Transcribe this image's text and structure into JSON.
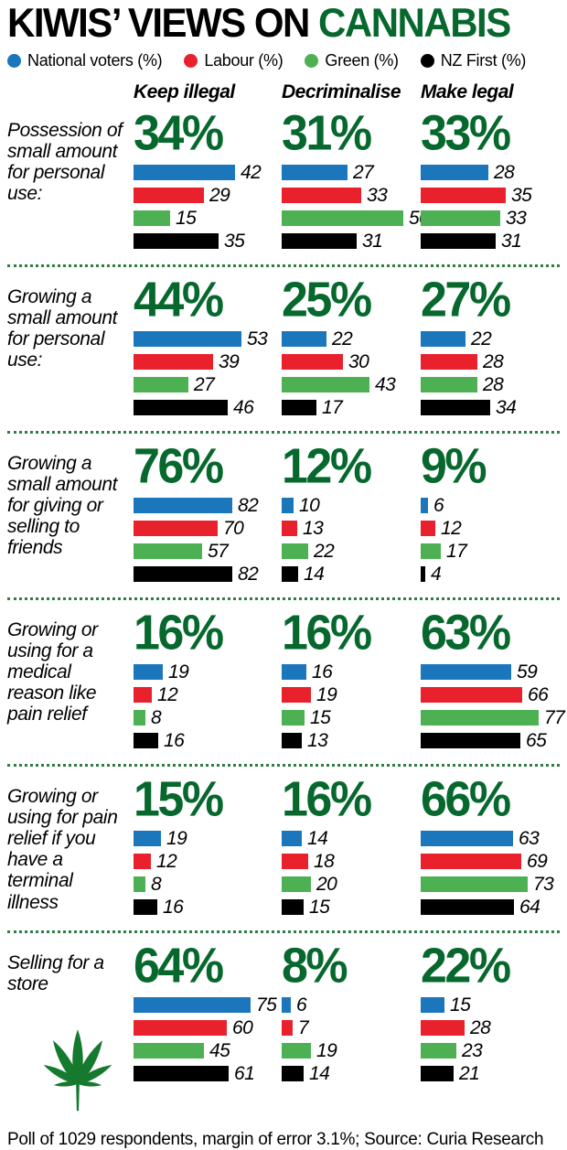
{
  "title": {
    "prefix": "KIWIS’ VIEWS ON ",
    "highlight": "CANNABIS"
  },
  "legend": [
    {
      "label": "National voters (%)",
      "color": "#1b76bc"
    },
    {
      "label": "Labour (%)",
      "color": "#e8212d"
    },
    {
      "label": "Green (%)",
      "color": "#4db052"
    },
    {
      "label": "NZ First (%)",
      "color": "#000000"
    }
  ],
  "colors": {
    "accent_green": "#06682d",
    "separator_dots": "#2e7d44",
    "leaf": "#157a2e",
    "title_black": "#000000"
  },
  "chart_data": {
    "type": "bar",
    "title": "KIWIS’ VIEWS ON CANNABIS",
    "orientation": "horizontal",
    "value_unit": "%",
    "series": [
      "National voters",
      "Labour",
      "Green",
      "NZ First"
    ],
    "stances": [
      "Keep illegal",
      "Decriminalise",
      "Make legal"
    ],
    "rows": [
      {
        "question": "Possession of small amount for personal use:",
        "cells": [
          {
            "stance": "Keep illegal",
            "total_pct": "34%",
            "values": [
              42,
              29,
              15,
              35
            ]
          },
          {
            "stance": "Decriminalise",
            "total_pct": "31%",
            "values": [
              27,
              33,
              50,
              31
            ]
          },
          {
            "stance": "Make legal",
            "total_pct": "33%",
            "values": [
              28,
              35,
              33,
              31
            ]
          }
        ]
      },
      {
        "question": "Growing a small amount for personal use:",
        "cells": [
          {
            "stance": "Keep illegal",
            "total_pct": "44%",
            "values": [
              53,
              39,
              27,
              46
            ]
          },
          {
            "stance": "Decriminalise",
            "total_pct": "25%",
            "values": [
              22,
              30,
              43,
              17
            ]
          },
          {
            "stance": "Make legal",
            "total_pct": "27%",
            "values": [
              22,
              28,
              28,
              34
            ]
          }
        ]
      },
      {
        "question": "Growing a small amount for giving or selling to friends",
        "cells": [
          {
            "stance": "Keep illegal",
            "total_pct": "76%",
            "values": [
              82,
              70,
              57,
              82
            ]
          },
          {
            "stance": "Decriminalise",
            "total_pct": "12%",
            "values": [
              10,
              13,
              22,
              14
            ]
          },
          {
            "stance": "Make legal",
            "total_pct": "9%",
            "values": [
              6,
              12,
              17,
              4
            ]
          }
        ]
      },
      {
        "question": "Growing or using for a medical reason like pain relief",
        "cells": [
          {
            "stance": "Keep illegal",
            "total_pct": "16%",
            "values": [
              19,
              12,
              8,
              16
            ]
          },
          {
            "stance": "Decriminalise",
            "total_pct": "16%",
            "values": [
              16,
              19,
              15,
              13
            ]
          },
          {
            "stance": "Make legal",
            "total_pct": "63%",
            "values": [
              59,
              66,
              77,
              65
            ]
          }
        ]
      },
      {
        "question": "Growing or using for pain relief if you have a terminal illness",
        "cells": [
          {
            "stance": "Keep illegal",
            "total_pct": "15%",
            "values": [
              19,
              12,
              8,
              16
            ]
          },
          {
            "stance": "Decriminalise",
            "total_pct": "16%",
            "values": [
              14,
              18,
              20,
              15
            ]
          },
          {
            "stance": "Make legal",
            "total_pct": "66%",
            "values": [
              63,
              69,
              73,
              64
            ]
          }
        ]
      },
      {
        "question": "Selling for a store",
        "has_leaf": true,
        "cells": [
          {
            "stance": "Keep illegal",
            "total_pct": "64%",
            "values": [
              75,
              60,
              45,
              61
            ]
          },
          {
            "stance": "Decriminalise",
            "total_pct": "8%",
            "values": [
              6,
              7,
              19,
              14
            ]
          },
          {
            "stance": "Make legal",
            "total_pct": "22%",
            "values": [
              15,
              28,
              23,
              21
            ]
          }
        ]
      }
    ]
  },
  "footer": "Poll of 1029 respondents, margin of error 3.1%; Source: Curia Research"
}
